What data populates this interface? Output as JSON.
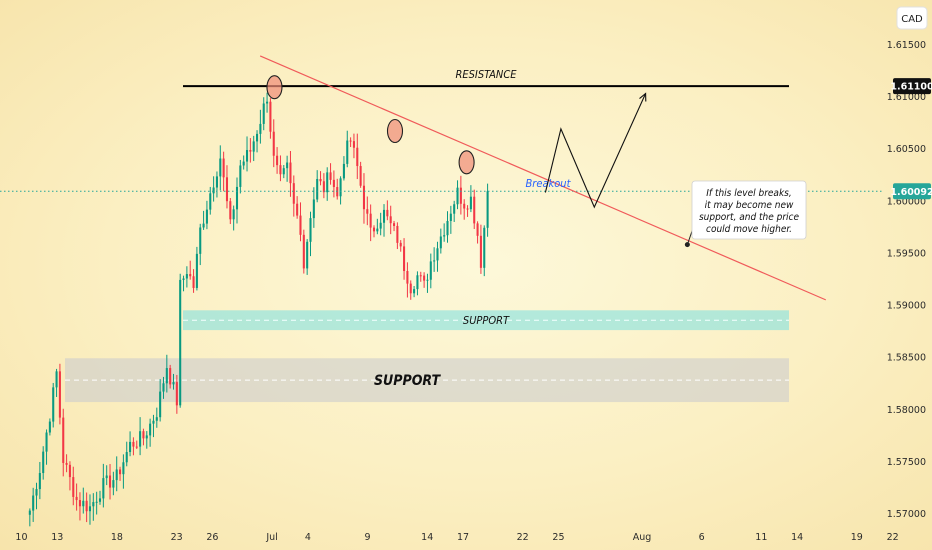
{
  "chart_data": {
    "type": "candlestick",
    "currency_label": "CAD",
    "ylim": [
      1.569,
      1.6185
    ],
    "y_ticks": [
      1.57,
      1.575,
      1.58,
      1.585,
      1.59,
      1.595,
      1.6,
      1.605,
      1.61,
      1.615
    ],
    "y_tick_labels": [
      "1.57000",
      "1.57500",
      "1.58000",
      "1.58500",
      "1.59000",
      "1.59500",
      "1.60000",
      "1.60500",
      "1.61000",
      "1.61500"
    ],
    "x_ticks": [
      {
        "label": "10",
        "day": 10
      },
      {
        "label": "13",
        "day": 13
      },
      {
        "label": "18",
        "day": 18
      },
      {
        "label": "23",
        "day": 23
      },
      {
        "label": "26",
        "day": 26
      },
      {
        "label": "Jul",
        "day": 31
      },
      {
        "label": "4",
        "day": 34
      },
      {
        "label": "9",
        "day": 39
      },
      {
        "label": "14",
        "day": 44
      },
      {
        "label": "17",
        "day": 47
      },
      {
        "label": "22",
        "day": 52
      },
      {
        "label": "25",
        "day": 55
      },
      {
        "label": "Aug",
        "day": 62
      },
      {
        "label": "6",
        "day": 67
      },
      {
        "label": "11",
        "day": 72
      },
      {
        "label": "14",
        "day": 75
      },
      {
        "label": "19",
        "day": 80
      },
      {
        "label": "22",
        "day": 83
      }
    ],
    "x_range_days": [
      8.2,
      86.3
    ],
    "colors": {
      "up": "#089981",
      "down": "#f23645",
      "resistance_line": "#000000",
      "trendline": "#f05a5a",
      "last_price_line": "#26a69a"
    },
    "resistance": {
      "label": "RESISTANCE",
      "price": 1.611,
      "price_label": "1.61100"
    },
    "last_price": {
      "price": 1.60092,
      "price_label": "1.60092"
    },
    "supports": [
      {
        "label": "SUPPORT",
        "top": 1.5895,
        "bottom": 1.5876,
        "mid": 1.58855
      },
      {
        "label": "SUPPORT",
        "top": 1.5849,
        "bottom": 1.5807,
        "mid": 1.5828
      }
    ],
    "trendline": {
      "start": {
        "day": 30.0,
        "price": 1.6139
      },
      "end": {
        "day": 77.4,
        "price": 1.5905
      }
    },
    "touch_points": [
      {
        "day": 31.2,
        "price": 1.6109
      },
      {
        "day": 41.3,
        "price": 1.6067
      },
      {
        "day": 47.3,
        "price": 1.6037
      }
    ],
    "breakout_label": "Breakout",
    "projection": [
      {
        "day": 53.9,
        "price": 1.6008
      },
      {
        "day": 55.2,
        "price": 1.6069
      },
      {
        "day": 58.0,
        "price": 1.5994
      },
      {
        "day": 62.3,
        "price": 1.6103
      }
    ],
    "annotation": {
      "text": [
        "If this level breaks,",
        "it may become new",
        "support, and the price",
        "could move higher."
      ],
      "anchor": {
        "day": 65.8,
        "price": 1.5958
      }
    },
    "candles": {
      "start_day": 10.7,
      "step_day": 0.28,
      "anchors": [
        [
          0,
          1.5703
        ],
        [
          3,
          1.5743
        ],
        [
          6,
          1.5795
        ],
        [
          8,
          1.5835
        ],
        [
          10,
          1.5752
        ],
        [
          14,
          1.5713
        ],
        [
          18,
          1.5706
        ],
        [
          22,
          1.5727
        ],
        [
          26,
          1.5735
        ],
        [
          30,
          1.5766
        ],
        [
          34,
          1.5773
        ],
        [
          38,
          1.5798
        ],
        [
          41,
          1.5842
        ],
        [
          44,
          1.5808
        ],
        [
          45,
          1.5918
        ],
        [
          47,
          1.5934
        ],
        [
          49,
          1.5918
        ],
        [
          51,
          1.5972
        ],
        [
          54,
          1.6008
        ],
        [
          57,
          1.6042
        ],
        [
          60,
          1.5975
        ],
        [
          63,
          1.6034
        ],
        [
          66,
          1.6048
        ],
        [
          69,
          1.6078
        ],
        [
          71,
          1.6101
        ],
        [
          73,
          1.6039
        ],
        [
          75,
          1.6018
        ],
        [
          77,
          1.6031
        ],
        [
          79,
          1.5995
        ],
        [
          81,
          1.5975
        ],
        [
          82,
          1.5938
        ],
        [
          84,
          1.5988
        ],
        [
          86,
          1.6018
        ],
        [
          88,
          1.6012
        ],
        [
          90,
          1.6028
        ],
        [
          92,
          1.6003
        ],
        [
          94,
          1.6042
        ],
        [
          96,
          1.6058
        ],
        [
          98,
          1.6032
        ],
        [
          100,
          1.5998
        ],
        [
          102,
          1.5968
        ],
        [
          104,
          1.5981
        ],
        [
          106,
          1.5988
        ],
        [
          108,
          1.5976
        ],
        [
          110,
          1.5964
        ],
        [
          112,
          1.5938
        ],
        [
          114,
          1.5918
        ],
        [
          116,
          1.5928
        ],
        [
          118,
          1.5918
        ],
        [
          120,
          1.5942
        ],
        [
          122,
          1.5958
        ],
        [
          124,
          1.5974
        ],
        [
          126,
          1.5992
        ],
        [
          128,
          1.6008
        ],
        [
          130,
          1.5998
        ],
        [
          132,
          1.6002
        ],
        [
          134,
          1.5968
        ],
        [
          135,
          1.5942
        ],
        [
          137,
          1.6007
        ]
      ]
    }
  }
}
